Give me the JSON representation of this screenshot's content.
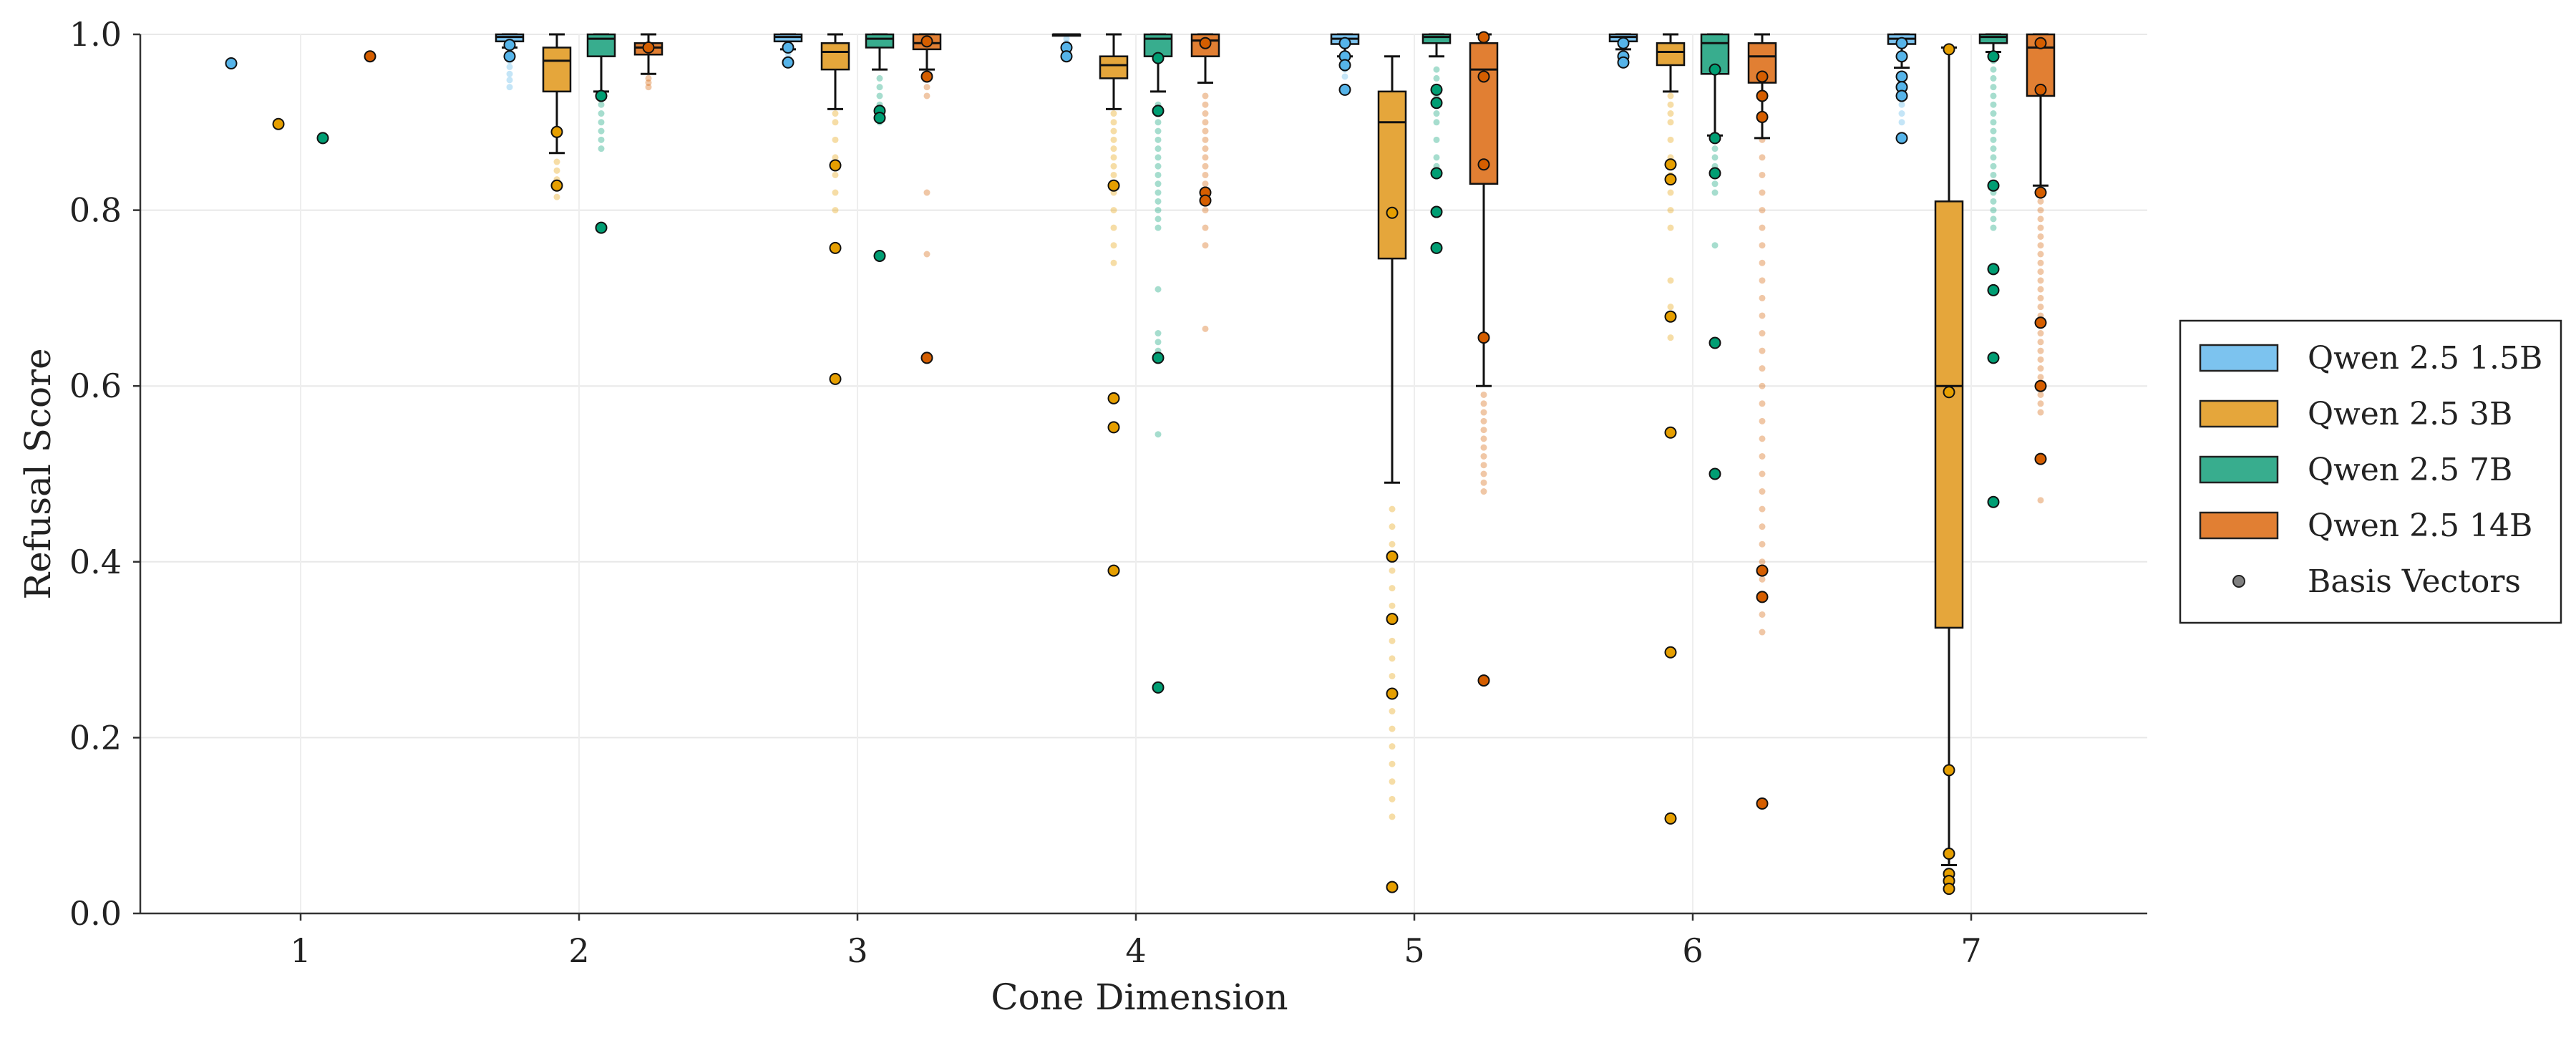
{
  "chart_data": {
    "type": "box",
    "title": "",
    "xlabel": "Cone Dimension",
    "ylabel": "Refusal Score",
    "ylim": [
      0.0,
      1.0
    ],
    "yticks": [
      0.0,
      0.2,
      0.4,
      0.6,
      0.8,
      1.0
    ],
    "ytick_labels": [
      "0.0",
      "0.2",
      "0.4",
      "0.6",
      "0.8",
      "1.0"
    ],
    "categories": [
      "1",
      "2",
      "3",
      "4",
      "5",
      "6",
      "7"
    ],
    "grid": true,
    "legend_position": "right",
    "legend": [
      {
        "label": "Qwen 2.5 1.5B",
        "kind": "box",
        "color": "#7CC3EF"
      },
      {
        "label": "Qwen 2.5 3B",
        "kind": "box",
        "color": "#E5A63B"
      },
      {
        "label": "Qwen 2.5 7B",
        "kind": "box",
        "color": "#38AD8E"
      },
      {
        "label": "Qwen 2.5 14B",
        "kind": "box",
        "color": "#E17F33"
      },
      {
        "label": "Basis Vectors",
        "kind": "point",
        "color": "#808080"
      }
    ],
    "series": [
      {
        "name": "Qwen 2.5 1.5B",
        "color": "#7CC3EF",
        "point_color": "#56B4E9",
        "boxes": [
          null,
          {
            "q1": 0.992,
            "median": 0.997,
            "q3": 1.0,
            "whislo": 0.985,
            "whishi": 1.0
          },
          {
            "q1": 0.992,
            "median": 0.997,
            "q3": 1.0,
            "whislo": 0.983,
            "whishi": 1.0
          },
          {
            "q1": 1.0,
            "median": 1.0,
            "q3": 1.0,
            "whislo": 1.0,
            "whishi": 1.0
          },
          {
            "q1": 0.989,
            "median": 0.995,
            "q3": 1.0,
            "whislo": 0.975,
            "whishi": 1.0
          },
          {
            "q1": 0.992,
            "median": 0.997,
            "q3": 1.0,
            "whislo": 0.983,
            "whishi": 1.0
          },
          {
            "q1": 0.989,
            "median": 0.995,
            "q3": 1.0,
            "whislo": 0.962,
            "whishi": 1.0
          }
        ],
        "fliers": [
          [],
          [
            0.975,
            0.97,
            0.963,
            0.955,
            0.948,
            0.94
          ],
          [
            0.978,
            0.972
          ],
          [
            0.995,
            0.99,
            0.985
          ],
          [
            0.968,
            0.96,
            0.952
          ],
          [
            0.978,
            0.972,
            0.966
          ],
          [
            0.955,
            0.948,
            0.94,
            0.93,
            0.92,
            0.91,
            0.9,
            0.885
          ]
        ],
        "basis": [
          [
            0.967
          ],
          [
            0.988,
            0.975
          ],
          [
            0.985,
            0.968
          ],
          [
            0.985,
            0.975
          ],
          [
            0.99,
            0.975,
            0.965,
            0.937
          ],
          [
            0.99,
            0.975,
            0.968
          ],
          [
            0.99,
            0.975,
            0.952,
            0.94,
            0.93,
            0.882
          ]
        ]
      },
      {
        "name": "Qwen 2.5 3B",
        "color": "#E5A63B",
        "point_color": "#E69F00",
        "boxes": [
          null,
          {
            "q1": 0.935,
            "median": 0.97,
            "q3": 0.985,
            "whislo": 0.865,
            "whishi": 1.0
          },
          {
            "q1": 0.96,
            "median": 0.98,
            "q3": 0.99,
            "whislo": 0.915,
            "whishi": 1.0
          },
          {
            "q1": 0.95,
            "median": 0.965,
            "q3": 0.975,
            "whislo": 0.915,
            "whishi": 1.0
          },
          {
            "q1": 0.745,
            "median": 0.9,
            "q3": 0.935,
            "whislo": 0.49,
            "whishi": 0.975
          },
          {
            "q1": 0.965,
            "median": 0.98,
            "q3": 0.99,
            "whislo": 0.935,
            "whishi": 1.0
          },
          {
            "q1": 0.325,
            "median": 0.6,
            "q3": 0.81,
            "whislo": 0.055,
            "whishi": 0.985
          }
        ],
        "fliers": [
          [],
          [
            0.855,
            0.845,
            0.835,
            0.825,
            0.815
          ],
          [
            0.91,
            0.9,
            0.88,
            0.86,
            0.84,
            0.82,
            0.8
          ],
          [
            0.91,
            0.9,
            0.89,
            0.88,
            0.87,
            0.86,
            0.85,
            0.84,
            0.82,
            0.8,
            0.78,
            0.76,
            0.74
          ],
          [
            0.46,
            0.44,
            0.42,
            0.39,
            0.37,
            0.35,
            0.31,
            0.29,
            0.27,
            0.23,
            0.21,
            0.19,
            0.17,
            0.15,
            0.13,
            0.11
          ],
          [
            0.93,
            0.92,
            0.91,
            0.9,
            0.88,
            0.86,
            0.84,
            0.82,
            0.8,
            0.78,
            0.72,
            0.69,
            0.655
          ],
          []
        ],
        "basis": [
          [
            0.898
          ],
          [
            0.889,
            0.828
          ],
          [
            0.851,
            0.757,
            0.608
          ],
          [
            0.828,
            0.586,
            0.553,
            0.39
          ],
          [
            0.797,
            0.406,
            0.335,
            0.25,
            0.03
          ],
          [
            0.852,
            0.835,
            0.679,
            0.547,
            0.297,
            0.108
          ],
          [
            0.983,
            0.593,
            0.163,
            0.068,
            0.045,
            0.037,
            0.028
          ]
        ]
      },
      {
        "name": "Qwen 2.5 7B",
        "color": "#38AD8E",
        "point_color": "#009E73",
        "boxes": [
          null,
          {
            "q1": 0.975,
            "median": 0.995,
            "q3": 1.0,
            "whislo": 0.935,
            "whishi": 1.0
          },
          {
            "q1": 0.985,
            "median": 0.995,
            "q3": 1.0,
            "whislo": 0.96,
            "whishi": 1.0
          },
          {
            "q1": 0.975,
            "median": 0.995,
            "q3": 1.0,
            "whislo": 0.935,
            "whishi": 1.0
          },
          {
            "q1": 0.99,
            "median": 0.997,
            "q3": 1.0,
            "whislo": 0.975,
            "whishi": 1.0
          },
          {
            "q1": 0.955,
            "median": 0.99,
            "q3": 1.0,
            "whislo": 0.885,
            "whishi": 1.0
          },
          {
            "q1": 0.99,
            "median": 0.997,
            "q3": 1.0,
            "whislo": 0.98,
            "whishi": 1.0
          }
        ],
        "fliers": [
          [],
          [
            0.93,
            0.92,
            0.91,
            0.9,
            0.89,
            0.88,
            0.87
          ],
          [
            0.95,
            0.94,
            0.93,
            0.92,
            0.91,
            0.9
          ],
          [
            0.92,
            0.91,
            0.9,
            0.89,
            0.88,
            0.87,
            0.86,
            0.85,
            0.84,
            0.83,
            0.82,
            0.81,
            0.8,
            0.79,
            0.78,
            0.71,
            0.66,
            0.65,
            0.64,
            0.545
          ],
          [
            0.96,
            0.95,
            0.94,
            0.93,
            0.92,
            0.91,
            0.9,
            0.88,
            0.86,
            0.85
          ],
          [
            0.87,
            0.86,
            0.85,
            0.84,
            0.83,
            0.82,
            0.76
          ],
          [
            0.97,
            0.96,
            0.95,
            0.94,
            0.93,
            0.92,
            0.91,
            0.9,
            0.89,
            0.88,
            0.87,
            0.86,
            0.85,
            0.84,
            0.83,
            0.82,
            0.81,
            0.8,
            0.79,
            0.78
          ]
        ],
        "basis": [
          [
            0.882
          ],
          [
            0.93,
            0.78
          ],
          [
            0.913,
            0.905,
            0.748
          ],
          [
            0.973,
            0.913,
            0.632,
            0.257
          ],
          [
            0.937,
            0.922,
            0.842,
            0.798,
            0.757
          ],
          [
            0.96,
            0.882,
            0.842,
            0.649,
            0.5
          ],
          [
            0.975,
            0.828,
            0.733,
            0.709,
            0.632,
            0.468
          ]
        ]
      },
      {
        "name": "Qwen 2.5 14B",
        "color": "#E17F33",
        "point_color": "#D55E00",
        "boxes": [
          null,
          {
            "q1": 0.977,
            "median": 0.985,
            "q3": 0.99,
            "whislo": 0.955,
            "whishi": 1.0
          },
          {
            "q1": 0.983,
            "median": 0.99,
            "q3": 1.0,
            "whislo": 0.96,
            "whishi": 1.0
          },
          {
            "q1": 0.975,
            "median": 0.993,
            "q3": 1.0,
            "whislo": 0.945,
            "whishi": 1.0
          },
          {
            "q1": 0.83,
            "median": 0.96,
            "q3": 0.99,
            "whislo": 0.6,
            "whishi": 1.0
          },
          {
            "q1": 0.945,
            "median": 0.975,
            "q3": 0.99,
            "whislo": 0.882,
            "whishi": 1.0
          },
          {
            "q1": 0.93,
            "median": 0.985,
            "q3": 1.0,
            "whislo": 0.828,
            "whishi": 1.0
          }
        ],
        "fliers": [
          [],
          [
            0.95,
            0.945,
            0.94
          ],
          [
            0.95,
            0.94,
            0.93,
            0.82,
            0.75
          ],
          [
            0.93,
            0.92,
            0.91,
            0.9,
            0.89,
            0.88,
            0.87,
            0.86,
            0.85,
            0.84,
            0.83,
            0.82,
            0.8,
            0.78,
            0.76,
            0.665
          ],
          [
            0.59,
            0.58,
            0.57,
            0.56,
            0.55,
            0.54,
            0.53,
            0.52,
            0.51,
            0.5,
            0.49,
            0.48
          ],
          [
            0.88,
            0.86,
            0.84,
            0.82,
            0.8,
            0.78,
            0.76,
            0.74,
            0.72,
            0.7,
            0.68,
            0.66,
            0.64,
            0.62,
            0.6,
            0.58,
            0.56,
            0.54,
            0.52,
            0.5,
            0.48,
            0.46,
            0.44,
            0.42,
            0.4,
            0.38,
            0.36,
            0.34,
            0.32
          ],
          [
            0.82,
            0.81,
            0.8,
            0.79,
            0.78,
            0.77,
            0.76,
            0.75,
            0.74,
            0.73,
            0.72,
            0.71,
            0.7,
            0.69,
            0.68,
            0.67,
            0.66,
            0.65,
            0.64,
            0.63,
            0.62,
            0.61,
            0.6,
            0.59,
            0.58,
            0.57,
            0.47
          ]
        ],
        "basis": [
          [
            0.975
          ],
          [
            0.985
          ],
          [
            0.992,
            0.952,
            0.632
          ],
          [
            0.99,
            0.82,
            0.811
          ],
          [
            1.0,
            0.952,
            0.852,
            0.655,
            0.265
          ],
          [
            0.952,
            0.93,
            0.906,
            0.39,
            0.36,
            0.125
          ],
          [
            0.99,
            0.937,
            0.82,
            0.672,
            0.6,
            0.517
          ]
        ]
      }
    ]
  }
}
